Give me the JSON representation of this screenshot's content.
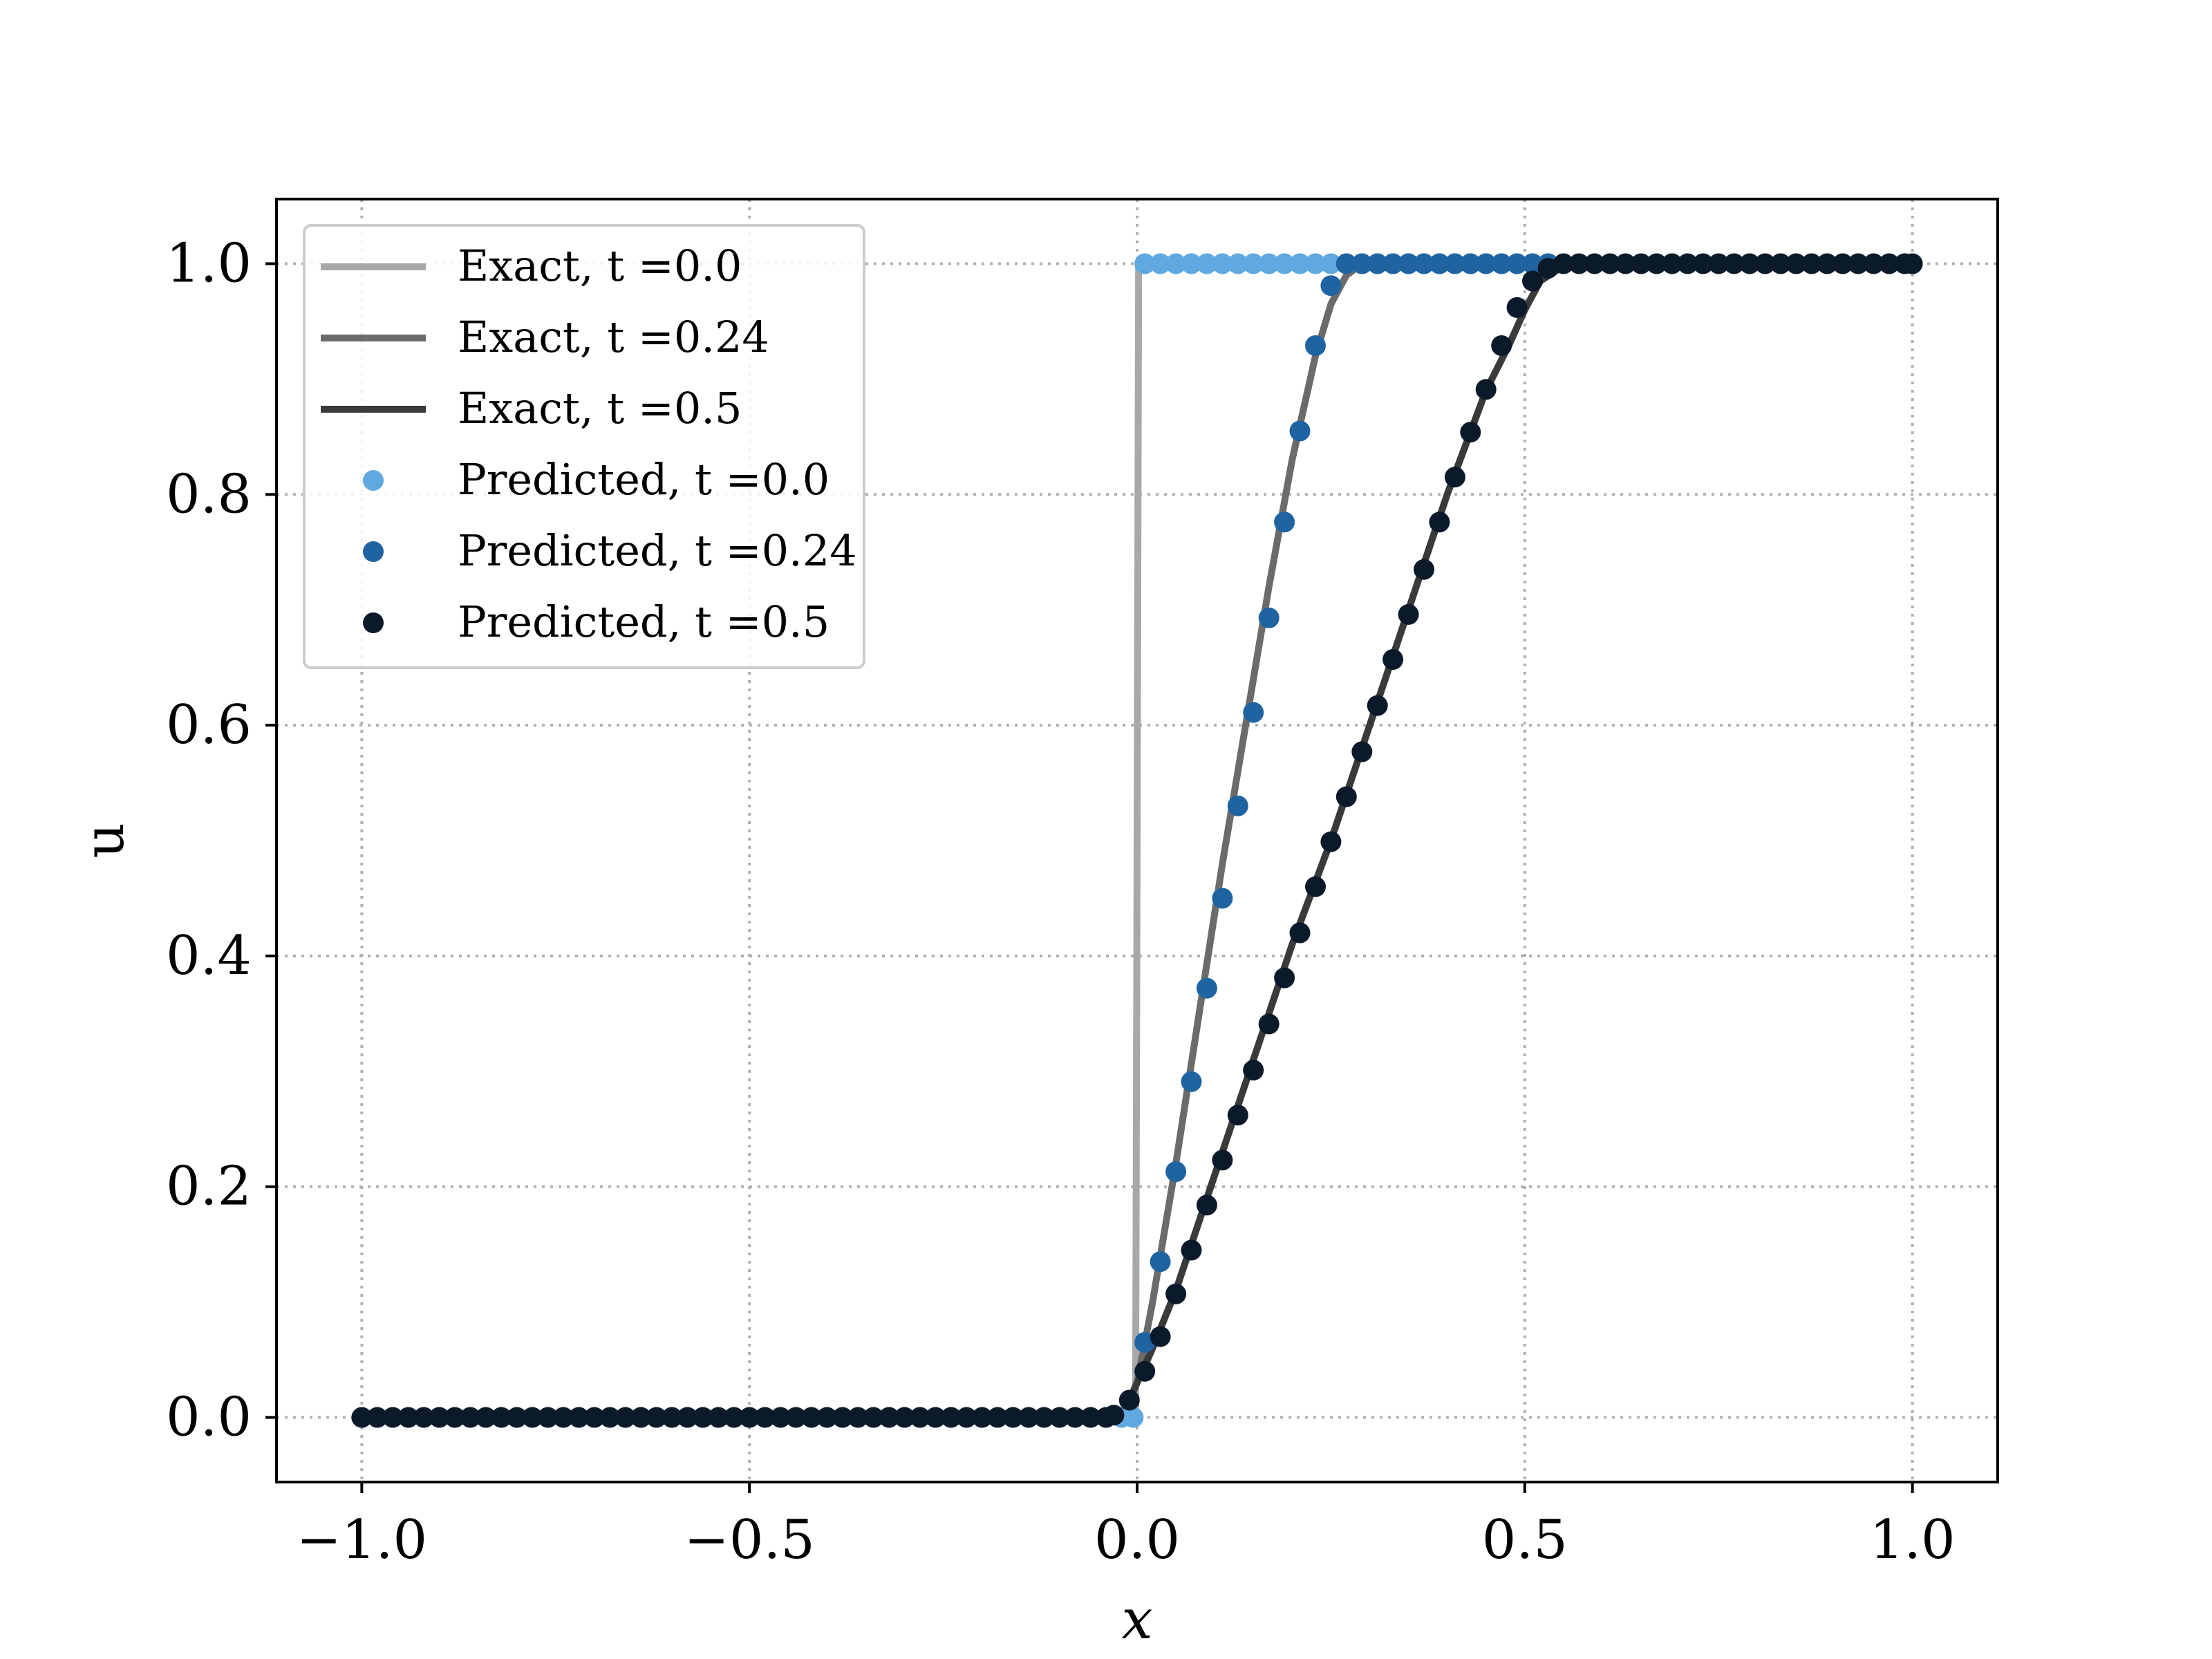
{
  "chart_data": {
    "type": "line",
    "xlabel": "x",
    "ylabel": "u",
    "xlim": [
      -1.11,
      1.11
    ],
    "ylim": [
      -0.056,
      1.056
    ],
    "xticks": [
      -1.0,
      -0.5,
      0.0,
      0.5,
      1.0
    ],
    "xtick_labels": [
      "−1.0",
      "−0.5",
      "0.0",
      "0.5",
      "1.0"
    ],
    "yticks": [
      0.0,
      0.2,
      0.4,
      0.6,
      0.8,
      1.0
    ],
    "ytick_labels": [
      "0.0",
      "0.2",
      "0.4",
      "0.6",
      "0.8",
      "1.0"
    ],
    "grid": true,
    "legend_position": "top-left",
    "series": [
      {
        "name": "Exact, t =0.0",
        "kind": "line",
        "color": "#a8a8a8",
        "x": [
          -1.0,
          -0.002,
          0.0,
          0.002,
          1.0
        ],
        "y": [
          0.0,
          0.0,
          0.5,
          1.0,
          1.0
        ]
      },
      {
        "name": "Exact, t =0.24",
        "kind": "line",
        "color": "#6b6b6b",
        "x": [
          -1.0,
          -0.02,
          0.0,
          0.02,
          0.05,
          0.08,
          0.11,
          0.14,
          0.17,
          0.2,
          0.23,
          0.25,
          0.27,
          0.29,
          0.31,
          1.0
        ],
        "y": [
          0.0,
          0.0,
          0.03,
          0.1,
          0.22,
          0.35,
          0.48,
          0.6,
          0.72,
          0.83,
          0.92,
          0.965,
          0.99,
          1.0,
          1.0,
          1.0
        ]
      },
      {
        "name": "Exact, t =0.5",
        "kind": "line",
        "color": "#3a3a3a",
        "x": [
          -1.0,
          -0.02,
          0.0,
          0.02,
          0.05,
          0.1,
          0.15,
          0.2,
          0.25,
          0.3,
          0.35,
          0.4,
          0.45,
          0.48,
          0.5,
          0.52,
          0.55,
          0.58,
          1.0
        ],
        "y": [
          0.0,
          0.0,
          0.03,
          0.06,
          0.11,
          0.21,
          0.31,
          0.41,
          0.5,
          0.6,
          0.7,
          0.8,
          0.89,
          0.93,
          0.96,
          0.985,
          0.998,
          1.0,
          1.0
        ]
      },
      {
        "name": "Predicted, t =0.0",
        "kind": "scatter",
        "color": "#5fa8e0",
        "x": [
          -0.02,
          -0.005,
          0.01,
          0.03,
          0.05,
          0.07,
          0.09,
          0.11,
          0.13,
          0.15,
          0.17,
          0.19,
          0.21,
          0.23,
          0.25,
          0.27,
          0.29,
          0.31,
          0.33,
          0.35,
          0.37,
          0.39,
          0.41,
          0.43,
          0.45,
          0.47,
          0.49,
          0.51,
          0.53
        ],
        "y": [
          0.0,
          0.0,
          1.0,
          1.0,
          1.0,
          1.0,
          1.0,
          1.0,
          1.0,
          1.0,
          1.0,
          1.0,
          1.0,
          1.0,
          1.0,
          1.0,
          1.0,
          1.0,
          1.0,
          1.0,
          1.0,
          1.0,
          1.0,
          1.0,
          1.0,
          1.0,
          1.0,
          1.0,
          1.0
        ]
      },
      {
        "name": "Predicted, t =0.24",
        "kind": "scatter",
        "color": "#1f64a0",
        "x": [
          0.01,
          0.03,
          0.05,
          0.07,
          0.09,
          0.11,
          0.13,
          0.15,
          0.17,
          0.19,
          0.21,
          0.23,
          0.25,
          0.27,
          0.29,
          0.31,
          0.33,
          0.35,
          0.37,
          0.39,
          0.41,
          0.43,
          0.45,
          0.47,
          0.49,
          0.51,
          0.53
        ],
        "y": [
          0.065,
          0.135,
          0.213,
          0.291,
          0.372,
          0.45,
          0.53,
          0.611,
          0.693,
          0.776,
          0.855,
          0.929,
          0.981,
          1.0,
          1.0,
          1.0,
          1.0,
          1.0,
          1.0,
          1.0,
          1.0,
          1.0,
          1.0,
          1.0,
          1.0,
          1.0,
          1.0
        ]
      },
      {
        "name": "Predicted, t =0.5",
        "kind": "scatter",
        "color": "#0b1a2a",
        "x": [
          -1.0,
          -0.98,
          -0.96,
          -0.94,
          -0.92,
          -0.9,
          -0.88,
          -0.86,
          -0.84,
          -0.82,
          -0.8,
          -0.78,
          -0.76,
          -0.74,
          -0.72,
          -0.7,
          -0.68,
          -0.66,
          -0.64,
          -0.62,
          -0.6,
          -0.58,
          -0.56,
          -0.54,
          -0.52,
          -0.5,
          -0.48,
          -0.46,
          -0.44,
          -0.42,
          -0.4,
          -0.38,
          -0.36,
          -0.34,
          -0.32,
          -0.3,
          -0.28,
          -0.26,
          -0.24,
          -0.22,
          -0.2,
          -0.18,
          -0.16,
          -0.14,
          -0.12,
          -0.1,
          -0.08,
          -0.06,
          -0.04,
          -0.03,
          -0.01,
          0.01,
          0.03,
          0.05,
          0.07,
          0.09,
          0.11,
          0.13,
          0.15,
          0.17,
          0.19,
          0.21,
          0.23,
          0.25,
          0.27,
          0.29,
          0.31,
          0.33,
          0.35,
          0.37,
          0.39,
          0.41,
          0.43,
          0.45,
          0.47,
          0.49,
          0.51,
          0.53,
          0.55,
          0.57,
          0.59,
          0.61,
          0.63,
          0.65,
          0.67,
          0.69,
          0.71,
          0.73,
          0.75,
          0.77,
          0.79,
          0.81,
          0.83,
          0.85,
          0.87,
          0.89,
          0.91,
          0.93,
          0.95,
          0.97,
          0.99,
          1.0
        ],
        "y": [
          0.0,
          0.0,
          0.0,
          0.0,
          0.0,
          0.0,
          0.0,
          0.0,
          0.0,
          0.0,
          0.0,
          0.0,
          0.0,
          0.0,
          0.0,
          0.0,
          0.0,
          0.0,
          0.0,
          0.0,
          0.0,
          0.0,
          0.0,
          0.0,
          0.0,
          0.0,
          0.0,
          0.0,
          0.0,
          0.0,
          0.0,
          0.0,
          0.0,
          0.0,
          0.0,
          0.0,
          0.0,
          0.0,
          0.0,
          0.0,
          0.0,
          0.0,
          0.0,
          0.0,
          0.0,
          0.0,
          0.0,
          0.0,
          0.0,
          0.002,
          0.015,
          0.04,
          0.07,
          0.107,
          0.145,
          0.184,
          0.223,
          0.262,
          0.301,
          0.341,
          0.381,
          0.42,
          0.46,
          0.499,
          0.538,
          0.577,
          0.617,
          0.657,
          0.696,
          0.735,
          0.776,
          0.815,
          0.854,
          0.891,
          0.929,
          0.962,
          0.985,
          0.996,
          1.0,
          1.0,
          1.0,
          1.0,
          1.0,
          1.0,
          1.0,
          1.0,
          1.0,
          1.0,
          1.0,
          1.0,
          1.0,
          1.0,
          1.0,
          1.0,
          1.0,
          1.0,
          1.0,
          1.0,
          1.0,
          1.0,
          1.0,
          1.0
        ]
      }
    ]
  }
}
